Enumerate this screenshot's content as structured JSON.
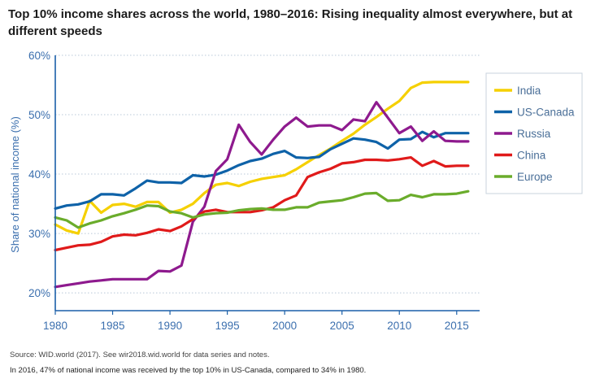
{
  "page": {
    "title": "Top 10% income shares across the world, 1980–2016: Rising inequality almost everywhere, but at different speeds",
    "source": "Source: WID.world (2017). See wir2018.wid.world for data series and notes.",
    "note": "In 2016, 47% of national income was received by the top 10% in US-Canada, compared to 34% in 1980."
  },
  "colors": {
    "axis": "#1a5fa8",
    "grid": "#b8c8d8",
    "tick_label": "#3b6fae"
  },
  "chart_data": {
    "type": "line",
    "title": "Top 10% income shares across the world, 1980–2016: Rising inequality almost everywhere, but at different speeds",
    "xlabel": "",
    "ylabel": "Share of national income (%)",
    "x": [
      1980,
      1981,
      1982,
      1983,
      1984,
      1985,
      1986,
      1987,
      1988,
      1989,
      1990,
      1991,
      1992,
      1993,
      1994,
      1995,
      1996,
      1997,
      1998,
      1999,
      2000,
      2001,
      2002,
      2003,
      2004,
      2005,
      2006,
      2007,
      2008,
      2009,
      2010,
      2011,
      2012,
      2013,
      2014,
      2015,
      2016
    ],
    "xlim": [
      1980,
      2017
    ],
    "ylim": [
      17,
      60
    ],
    "xticks": [
      1980,
      1985,
      1990,
      1995,
      2000,
      2005,
      2010,
      2015
    ],
    "yticks": [
      20,
      30,
      40,
      50,
      60
    ],
    "ytick_labels": [
      "20%",
      "30%",
      "40%",
      "50%",
      "60%"
    ],
    "grid": true,
    "legend_position": "right",
    "series": [
      {
        "name": "India",
        "color": "#f5d000",
        "values": [
          31.5,
          30.5,
          30.0,
          35.5,
          33.5,
          34.8,
          35.0,
          34.5,
          35.3,
          35.3,
          33.5,
          34.0,
          35.0,
          36.8,
          38.2,
          38.5,
          38.0,
          38.7,
          39.2,
          39.5,
          39.8,
          40.8,
          42.0,
          43.2,
          44.3,
          45.6,
          46.8,
          48.3,
          49.6,
          51.0,
          52.3,
          54.5,
          55.4,
          55.5,
          55.5,
          55.5,
          55.5
        ]
      },
      {
        "name": "US-Canada",
        "color": "#0e62a8",
        "values": [
          34.2,
          34.7,
          34.9,
          35.4,
          36.6,
          36.6,
          36.4,
          37.6,
          38.9,
          38.6,
          38.6,
          38.5,
          39.8,
          39.6,
          39.9,
          40.6,
          41.5,
          42.2,
          42.6,
          43.4,
          43.9,
          42.8,
          42.7,
          42.9,
          44.2,
          45.1,
          46.0,
          45.8,
          45.4,
          44.3,
          45.8,
          45.9,
          47.1,
          46.2,
          46.9,
          46.9,
          46.9
        ]
      },
      {
        "name": "Russia",
        "color": "#8e1a8e",
        "values": [
          21.0,
          21.3,
          21.6,
          21.9,
          22.1,
          22.3,
          22.3,
          22.3,
          22.3,
          23.7,
          23.6,
          24.6,
          32.0,
          34.5,
          40.5,
          42.5,
          48.3,
          45.4,
          43.3,
          45.8,
          48.0,
          49.5,
          48.0,
          48.2,
          48.2,
          47.4,
          49.2,
          48.9,
          52.1,
          49.5,
          46.9,
          48.0,
          45.6,
          47.2,
          45.6,
          45.5,
          45.5
        ]
      },
      {
        "name": "China",
        "color": "#e01a1a",
        "values": [
          27.2,
          27.6,
          28.0,
          28.1,
          28.6,
          29.5,
          29.8,
          29.7,
          30.1,
          30.7,
          30.4,
          31.2,
          32.4,
          33.7,
          34.0,
          33.6,
          33.6,
          33.6,
          33.9,
          34.4,
          35.6,
          36.4,
          39.5,
          40.3,
          40.9,
          41.8,
          42.0,
          42.4,
          42.4,
          42.3,
          42.5,
          42.8,
          41.4,
          42.2,
          41.3,
          41.4,
          41.4
        ]
      },
      {
        "name": "Europe",
        "color": "#6aac2b",
        "values": [
          32.7,
          32.2,
          31.0,
          31.7,
          32.2,
          32.9,
          33.4,
          34.0,
          34.7,
          34.6,
          33.7,
          33.4,
          32.7,
          33.2,
          33.4,
          33.5,
          33.9,
          34.1,
          34.2,
          34.0,
          34.0,
          34.4,
          34.4,
          35.2,
          35.4,
          35.6,
          36.1,
          36.7,
          36.8,
          35.5,
          35.6,
          36.5,
          36.1,
          36.6,
          36.6,
          36.7,
          37.1
        ]
      }
    ]
  }
}
